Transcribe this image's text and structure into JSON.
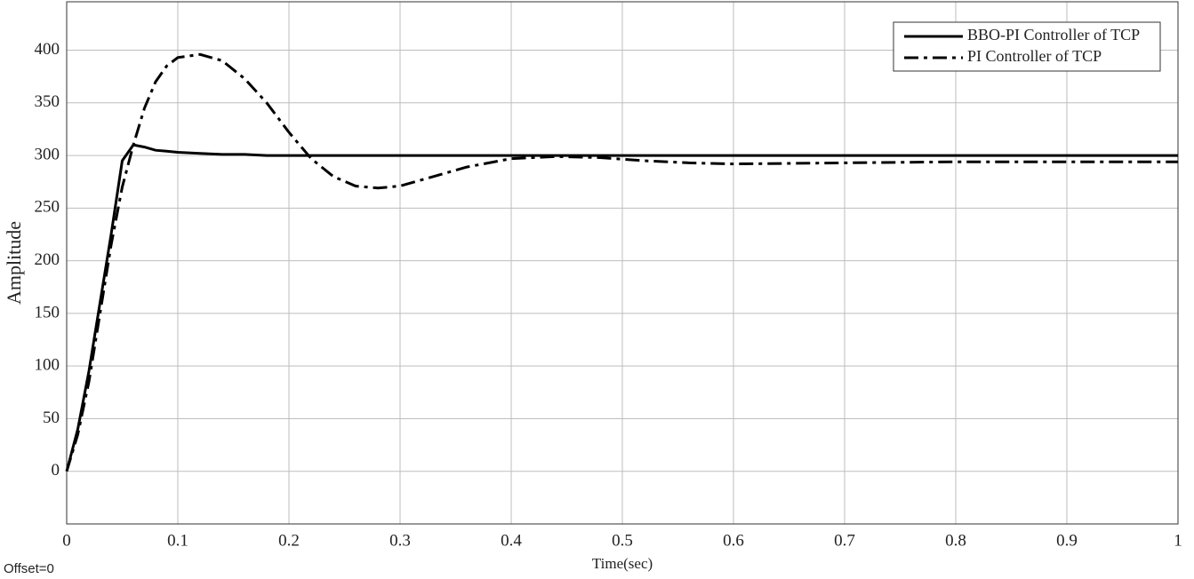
{
  "chart_data": {
    "type": "line",
    "x_label": "Time(sec)",
    "y_label": "Amplitude",
    "footnote": "Offset=0",
    "x": [
      0,
      0.01,
      0.02,
      0.03,
      0.04,
      0.05,
      0.06,
      0.07,
      0.08,
      0.09,
      0.1,
      0.12,
      0.14,
      0.16,
      0.18,
      0.2,
      0.22,
      0.24,
      0.26,
      0.28,
      0.3,
      0.33,
      0.36,
      0.4,
      0.44,
      0.48,
      0.52,
      0.56,
      0.6,
      0.7,
      0.8,
      0.9,
      1
    ],
    "series": [
      {
        "name": "BBO-PI Controller of TCP",
        "color": "#000000",
        "dash": "solid",
        "values": [
          0,
          40,
          95,
          160,
          225,
          295,
          310,
          308,
          305,
          304,
          303,
          302,
          301,
          301,
          300,
          300,
          300,
          300,
          300,
          300,
          300,
          300,
          300,
          300,
          300,
          300,
          300,
          300,
          300,
          300,
          300,
          300,
          300
        ]
      },
      {
        "name": "PI Controller of TCP",
        "color": "#000000",
        "dash": "dashdot",
        "values": [
          0,
          35,
          85,
          150,
          215,
          270,
          310,
          345,
          370,
          385,
          393,
          396,
          390,
          373,
          350,
          322,
          297,
          280,
          271,
          269,
          271,
          280,
          289,
          297,
          299,
          298,
          295,
          293,
          292,
          293,
          294,
          294,
          294
        ]
      }
    ],
    "xlim": [
      0,
      1
    ],
    "ylim": [
      -50,
      446
    ],
    "xticks": [
      0,
      0.1,
      0.2,
      0.3,
      0.4,
      0.5,
      0.6,
      0.7,
      0.8,
      0.9,
      1
    ],
    "yticks": [
      0,
      50,
      100,
      150,
      200,
      250,
      300,
      350,
      400
    ],
    "grid": true,
    "legend": "upper-right"
  }
}
